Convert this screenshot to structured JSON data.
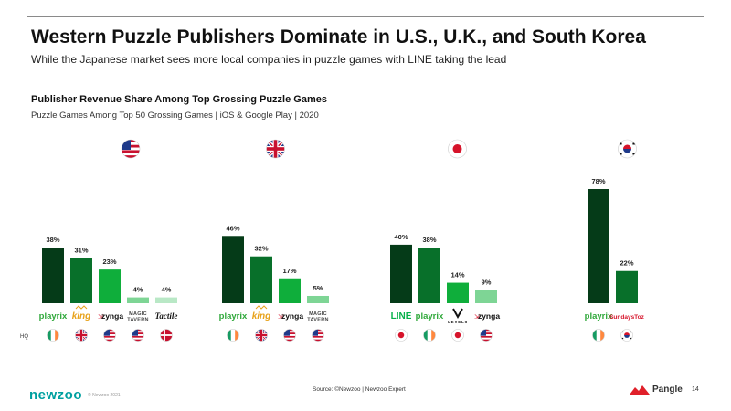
{
  "header": {
    "title": "Western Puzzle Publishers Dominate in U.S., U.K., and South Korea",
    "subtitle": "While the Japanese market sees more local companies in puzzle games with LINE taking the lead"
  },
  "chart_data": {
    "type": "bar",
    "title": "Publisher Revenue Share Among Top Grossing Puzzle Games",
    "subtitle": "Puzzle Games Among Top 50 Grossing Games | iOS & Google Play | 2020",
    "row_label": "HQ",
    "ylim": [
      0,
      80
    ],
    "grid": false,
    "groups": [
      {
        "market": "United States",
        "flag": "us",
        "bars": [
          {
            "publisher": "playrix",
            "value": 38,
            "label": "38%",
            "hq": "ie"
          },
          {
            "publisher": "king",
            "value": 31,
            "label": "31%",
            "hq": "uk"
          },
          {
            "publisher": "zynga",
            "value": 23,
            "label": "23%",
            "hq": "us"
          },
          {
            "publisher": "MAGIC TAVERN",
            "value": 4,
            "label": "4%",
            "hq": "us"
          },
          {
            "publisher": "Tactile",
            "value": 4,
            "label": "4%",
            "hq": "dk"
          }
        ]
      },
      {
        "market": "United Kingdom",
        "flag": "uk",
        "bars": [
          {
            "publisher": "playrix",
            "value": 46,
            "label": "46%",
            "hq": "ie"
          },
          {
            "publisher": "king",
            "value": 32,
            "label": "32%",
            "hq": "uk"
          },
          {
            "publisher": "zynga",
            "value": 17,
            "label": "17%",
            "hq": "us"
          },
          {
            "publisher": "MAGIC TAVERN",
            "value": 5,
            "label": "5%",
            "hq": "us"
          }
        ]
      },
      {
        "market": "Japan",
        "flag": "jp",
        "bars": [
          {
            "publisher": "LINE",
            "value": 40,
            "label": "40%",
            "hq": "jp"
          },
          {
            "publisher": "playrix",
            "value": 38,
            "label": "38%",
            "hq": "ie"
          },
          {
            "publisher": "LEVEL5",
            "value": 14,
            "label": "14%",
            "hq": "jp"
          },
          {
            "publisher": "zynga",
            "value": 9,
            "label": "9%",
            "hq": "us"
          }
        ]
      },
      {
        "market": "South Korea",
        "flag": "kr",
        "bars": [
          {
            "publisher": "playrix",
            "value": 78,
            "label": "78%",
            "hq": "ie"
          },
          {
            "publisher": "SundaysToz",
            "value": 22,
            "label": "22%",
            "hq": "kr"
          }
        ]
      }
    ]
  },
  "colors": {
    "bar_shades": [
      "#053b18",
      "#08702a",
      "#0fae3b",
      "#7ed595",
      "#b9e8c6"
    ],
    "playrix": "#2fa83a",
    "king": "#e8a21a",
    "zynga": "#d6132a",
    "line": "#06b14a",
    "sundaytoz": "#d6132a",
    "newzoo": "#00a0a0",
    "pangle": "#e0202a"
  },
  "footer": {
    "logo": "newzoo",
    "copyright": "© Newzoo 2021",
    "source": "Source: ©Newzoo | Newzoo Expert",
    "brand": "Pangle",
    "page": "14"
  }
}
